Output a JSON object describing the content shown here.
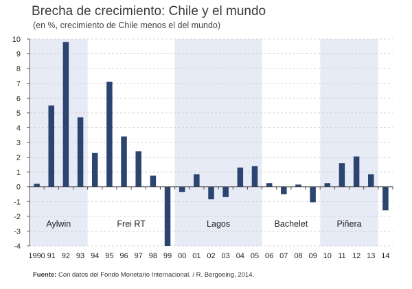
{
  "chart_data": {
    "type": "bar",
    "title": "Brecha de crecimiento: Chile y el mundo",
    "subtitle": "(en %, crecimiento de Chile menos el del mundo)",
    "categories": [
      "1990",
      "91",
      "92",
      "93",
      "94",
      "95",
      "96",
      "97",
      "98",
      "99",
      "00",
      "01",
      "02",
      "03",
      "04",
      "05",
      "06",
      "07",
      "08",
      "09",
      "10",
      "11",
      "12",
      "13",
      "14"
    ],
    "values": [
      0.2,
      5.5,
      9.8,
      4.7,
      2.3,
      7.1,
      3.4,
      2.4,
      0.75,
      -4.0,
      -0.35,
      0.85,
      -0.85,
      -0.7,
      1.3,
      1.4,
      0.25,
      -0.5,
      0.15,
      -1.05,
      0.25,
      1.6,
      2.05,
      0.85,
      -1.6
    ],
    "ylim": [
      -4,
      10
    ],
    "yticks": [
      -4,
      -3,
      -2,
      -1,
      0,
      1,
      2,
      3,
      4,
      5,
      6,
      7,
      8,
      9,
      10
    ],
    "bar_color": "#2b4570",
    "shade_color": "#e6ebf6",
    "periods": [
      {
        "label": "Aylwin",
        "from": 0,
        "to": 3,
        "shaded": true
      },
      {
        "label": "Frei RT",
        "from": 4,
        "to": 9,
        "shaded": false
      },
      {
        "label": "Lagos",
        "from": 10,
        "to": 15,
        "shaded": true
      },
      {
        "label": "Bachelet",
        "from": 16,
        "to": 19,
        "shaded": false
      },
      {
        "label": "Piñera",
        "from": 20,
        "to": 23,
        "shaded": true
      }
    ]
  },
  "source": {
    "label": "Fuente:",
    "text": "Con datos del Fondo Monetario Internacional.  / R. Bergoeing, 2014."
  }
}
